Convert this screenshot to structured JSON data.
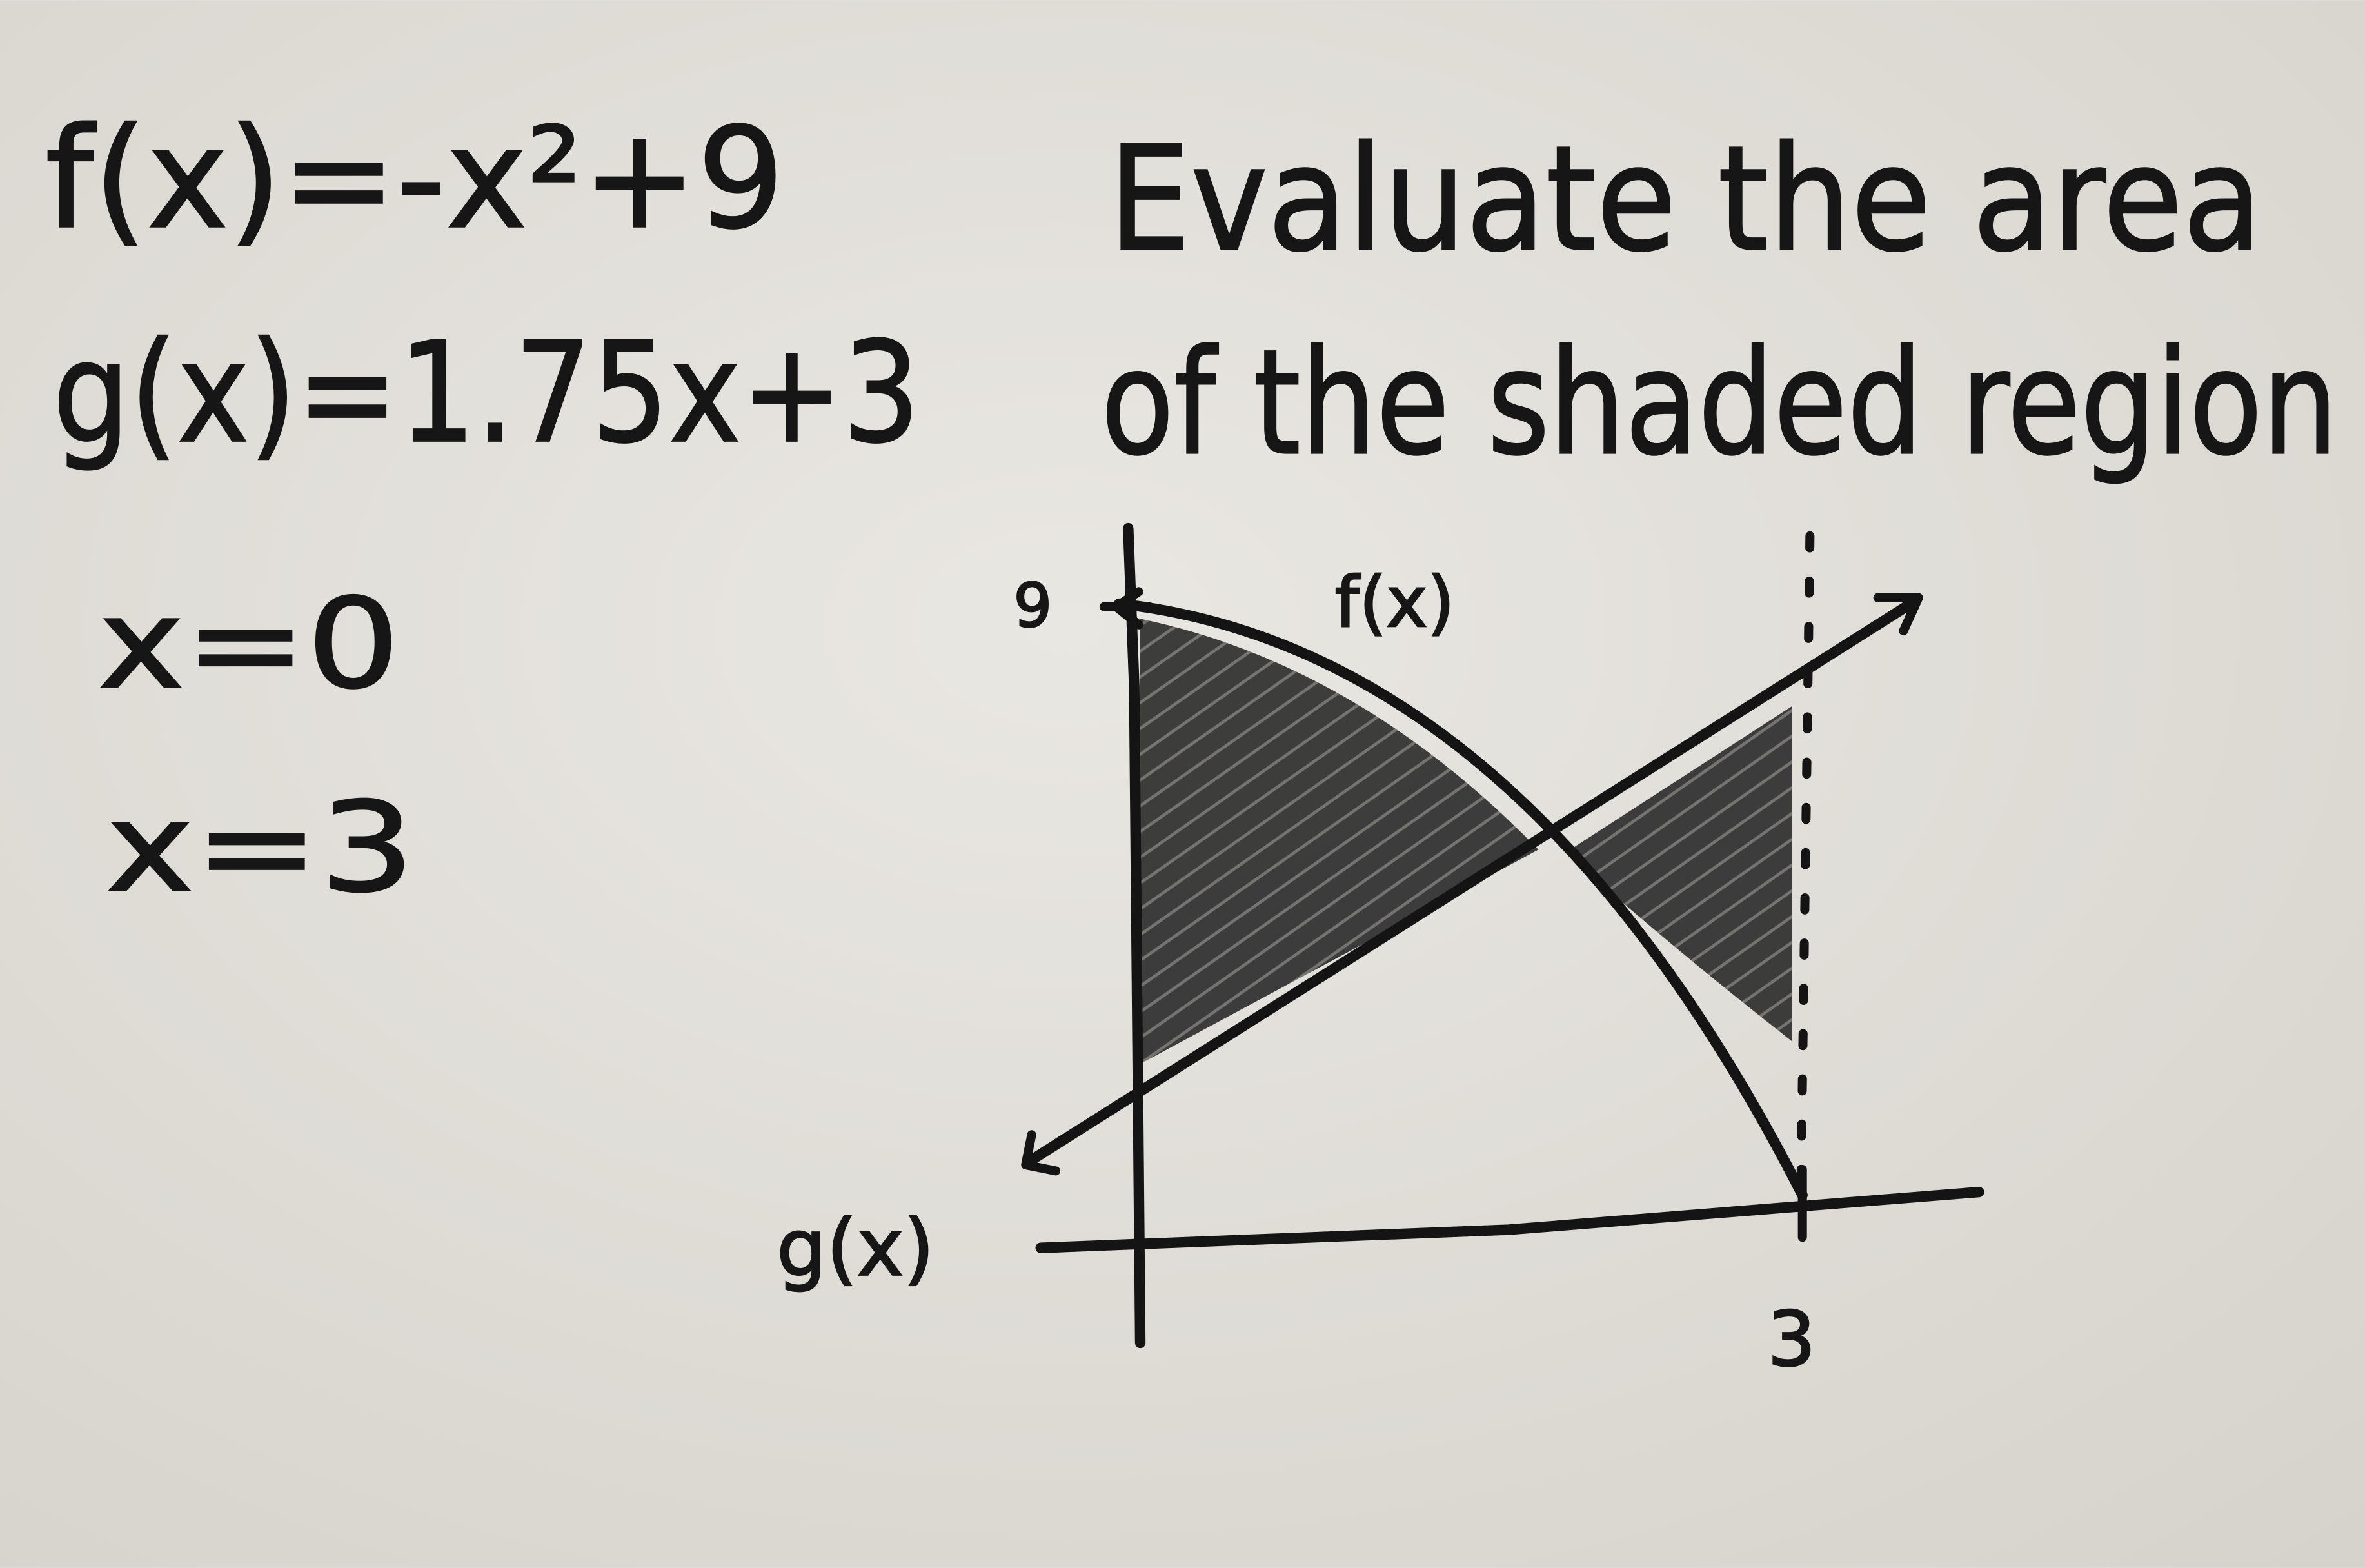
{
  "equations": [
    "f(x)=-x²+9",
    "g(x)=1.75x+3",
    "x=0",
    "x=3"
  ],
  "prompt": [
    "Evaluate the area",
    "of the shaded region"
  ],
  "graph": {
    "y_label": "9",
    "f_label": "f(x)",
    "g_label": "g(x)",
    "x_label": "3"
  }
}
